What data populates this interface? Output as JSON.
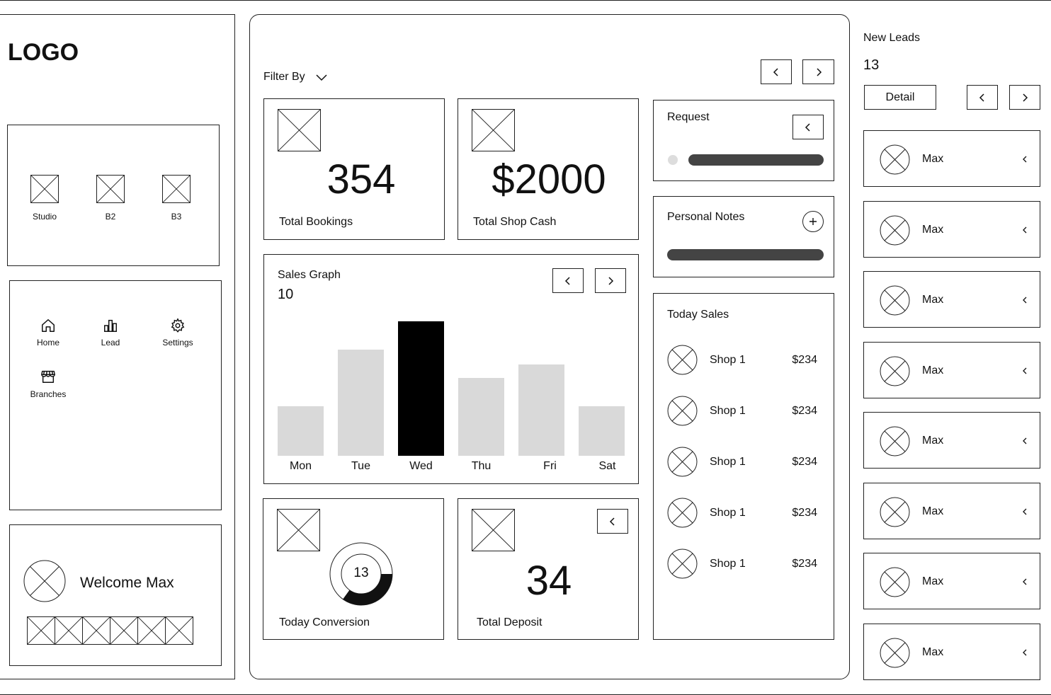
{
  "logo": "LOGO",
  "branches": [
    {
      "label": "Studio",
      "icon": "image-placeholder-icon"
    },
    {
      "label": "B2",
      "icon": "image-placeholder-icon"
    },
    {
      "label": "B3",
      "icon": "image-placeholder-icon"
    }
  ],
  "nav": [
    {
      "label": "Home",
      "icon": "home-icon"
    },
    {
      "label": "Lead",
      "icon": "chart-icon"
    },
    {
      "label": "Settings",
      "icon": "gear-icon"
    },
    {
      "label": "Branches",
      "icon": "store-icon"
    }
  ],
  "welcome": {
    "text": "Welcome Max"
  },
  "filter": {
    "label": "Filter By"
  },
  "stats": {
    "bookings": {
      "value": "354",
      "label": "Total Bookings"
    },
    "shop_cash": {
      "value": "$2000",
      "label": "Total Shop Cash"
    },
    "conversion": {
      "value": "13",
      "label": "Today Conversion",
      "progress": 0.35
    },
    "deposit": {
      "value": "34",
      "label": "Total Deposit"
    }
  },
  "sales_graph": {
    "title": "Sales Graph",
    "value": "10"
  },
  "chart_data": {
    "type": "bar",
    "categories": [
      "Mon",
      "Tue",
      "Wed",
      "Thu",
      "Fri",
      "Sat"
    ],
    "values": [
      3.7,
      7.9,
      10,
      5.8,
      6.8,
      3.7
    ],
    "highlight_index": 2,
    "ylim": [
      0,
      10
    ],
    "title": "Sales Graph",
    "colors": {
      "default": "#d9d9d9",
      "highlight": "#000000"
    }
  },
  "request": {
    "title": "Request"
  },
  "personal_notes": {
    "title": "Personal Notes"
  },
  "today_sales": {
    "title": "Today Sales",
    "items": [
      {
        "name": "Shop 1",
        "amount": "$234"
      },
      {
        "name": "Shop 1",
        "amount": "$234"
      },
      {
        "name": "Shop 1",
        "amount": "$234"
      },
      {
        "name": "Shop 1",
        "amount": "$234"
      },
      {
        "name": "Shop 1",
        "amount": "$234"
      }
    ]
  },
  "new_leads": {
    "title": "New Leads",
    "count": "13",
    "detail_label": "Detail",
    "items": [
      {
        "name": "Max"
      },
      {
        "name": "Max"
      },
      {
        "name": "Max"
      },
      {
        "name": "Max"
      },
      {
        "name": "Max"
      },
      {
        "name": "Max"
      },
      {
        "name": "Max"
      },
      {
        "name": "Max"
      }
    ]
  }
}
